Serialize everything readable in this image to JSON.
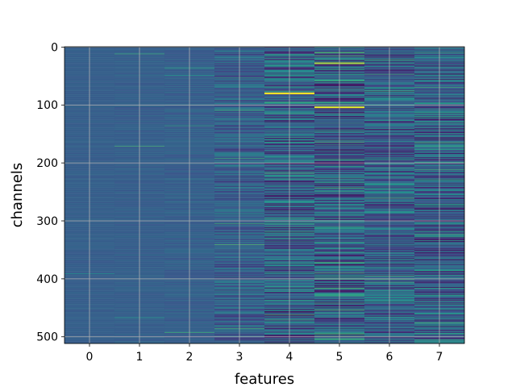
{
  "chart_data": {
    "type": "heatmap",
    "title": "",
    "xlabel": "features",
    "ylabel": "channels",
    "x_categories": [
      "0",
      "1",
      "2",
      "3",
      "4",
      "5",
      "6",
      "7"
    ],
    "y_range": [
      0,
      512
    ],
    "y_ticks": [
      0,
      100,
      200,
      300,
      400,
      500
    ],
    "y_inverted": true,
    "grid": true,
    "colormap": "viridis",
    "feature_variance": [
      0.05,
      0.07,
      0.1,
      0.3,
      0.55,
      0.6,
      0.5,
      0.55
    ],
    "highlights": [
      {
        "feature": "4",
        "channel": 80,
        "value": 1.0
      },
      {
        "feature": "5",
        "channel": 104,
        "value": 0.95
      },
      {
        "feature": "5",
        "channel": 28,
        "value": 0.85
      }
    ]
  }
}
